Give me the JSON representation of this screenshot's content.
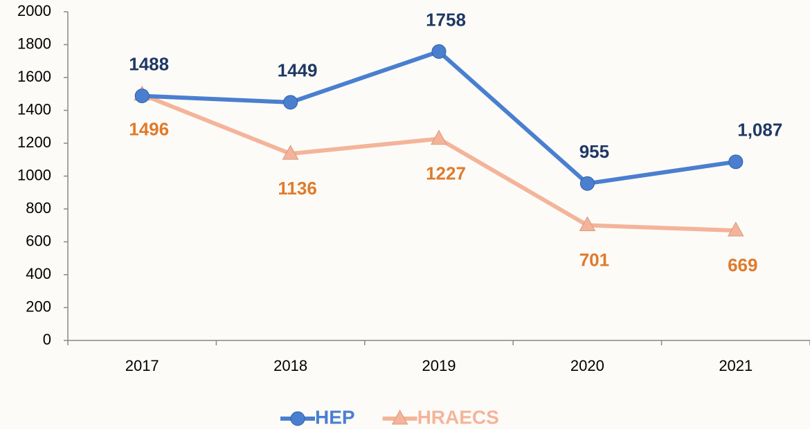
{
  "chart_data": {
    "type": "line",
    "categories": [
      "2017",
      "2018",
      "2019",
      "2020",
      "2021"
    ],
    "series": [
      {
        "name": "HEP",
        "color": "#4a7fd0",
        "label_color": "#1f3864",
        "marker": "circle",
        "values": [
          1488,
          1449,
          1758,
          955,
          1087
        ],
        "value_labels": [
          "1488",
          "1449",
          "1758",
          "955",
          "1,087"
        ]
      },
      {
        "name": "HRAECS",
        "color": "#f4b49a",
        "label_color": "#e07a2a",
        "marker": "triangle",
        "values": [
          1496,
          1136,
          1227,
          701,
          669
        ]
      }
    ],
    "ylim": [
      0,
      2000
    ],
    "yticks": [
      0,
      200,
      400,
      600,
      800,
      1000,
      1200,
      1400,
      1600,
      1800,
      2000
    ],
    "grid": false,
    "legend": "bottom"
  }
}
